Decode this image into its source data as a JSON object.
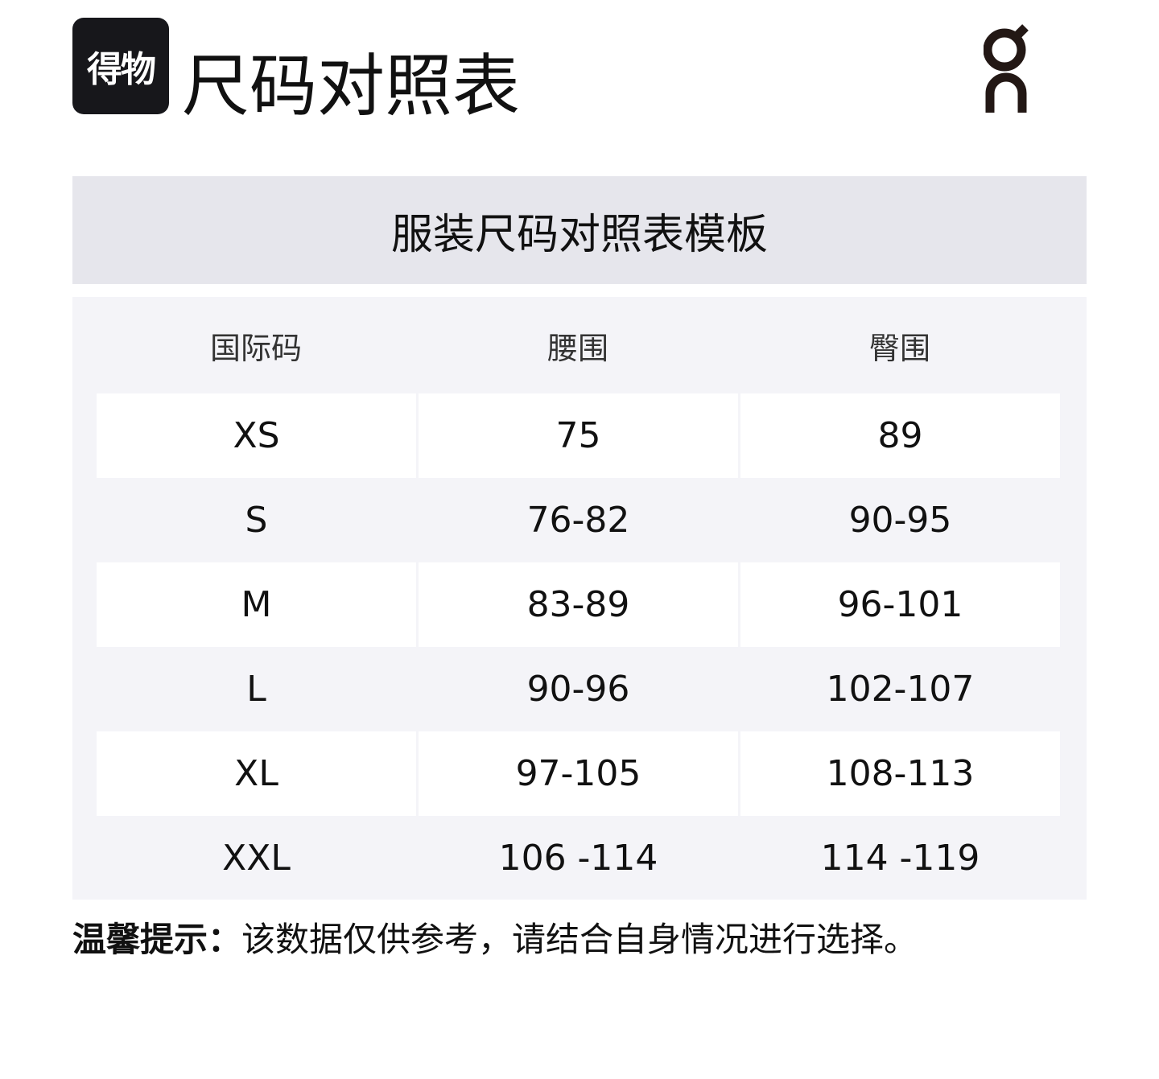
{
  "logo": {
    "text": "得物"
  },
  "page_title": "尺码对照表",
  "brand_logo": {
    "text": "on",
    "color": "#231815"
  },
  "table_title": "服装尺码对照表模板",
  "headers": [
    "国际码",
    "腰围",
    "臀围"
  ],
  "rows": [
    [
      "XS",
      "75",
      "89"
    ],
    [
      "S",
      "76-82",
      "90-95"
    ],
    [
      "M",
      "83-89",
      "96-101"
    ],
    [
      "L",
      "90-96",
      "102-107"
    ],
    [
      "XL",
      "97-105",
      "108-113"
    ],
    [
      "XXL",
      "106 -114",
      "114 -119"
    ]
  ],
  "note": {
    "label": "温馨提示：",
    "text": "该数据仅供参考，请结合自身情况进行选择。"
  }
}
